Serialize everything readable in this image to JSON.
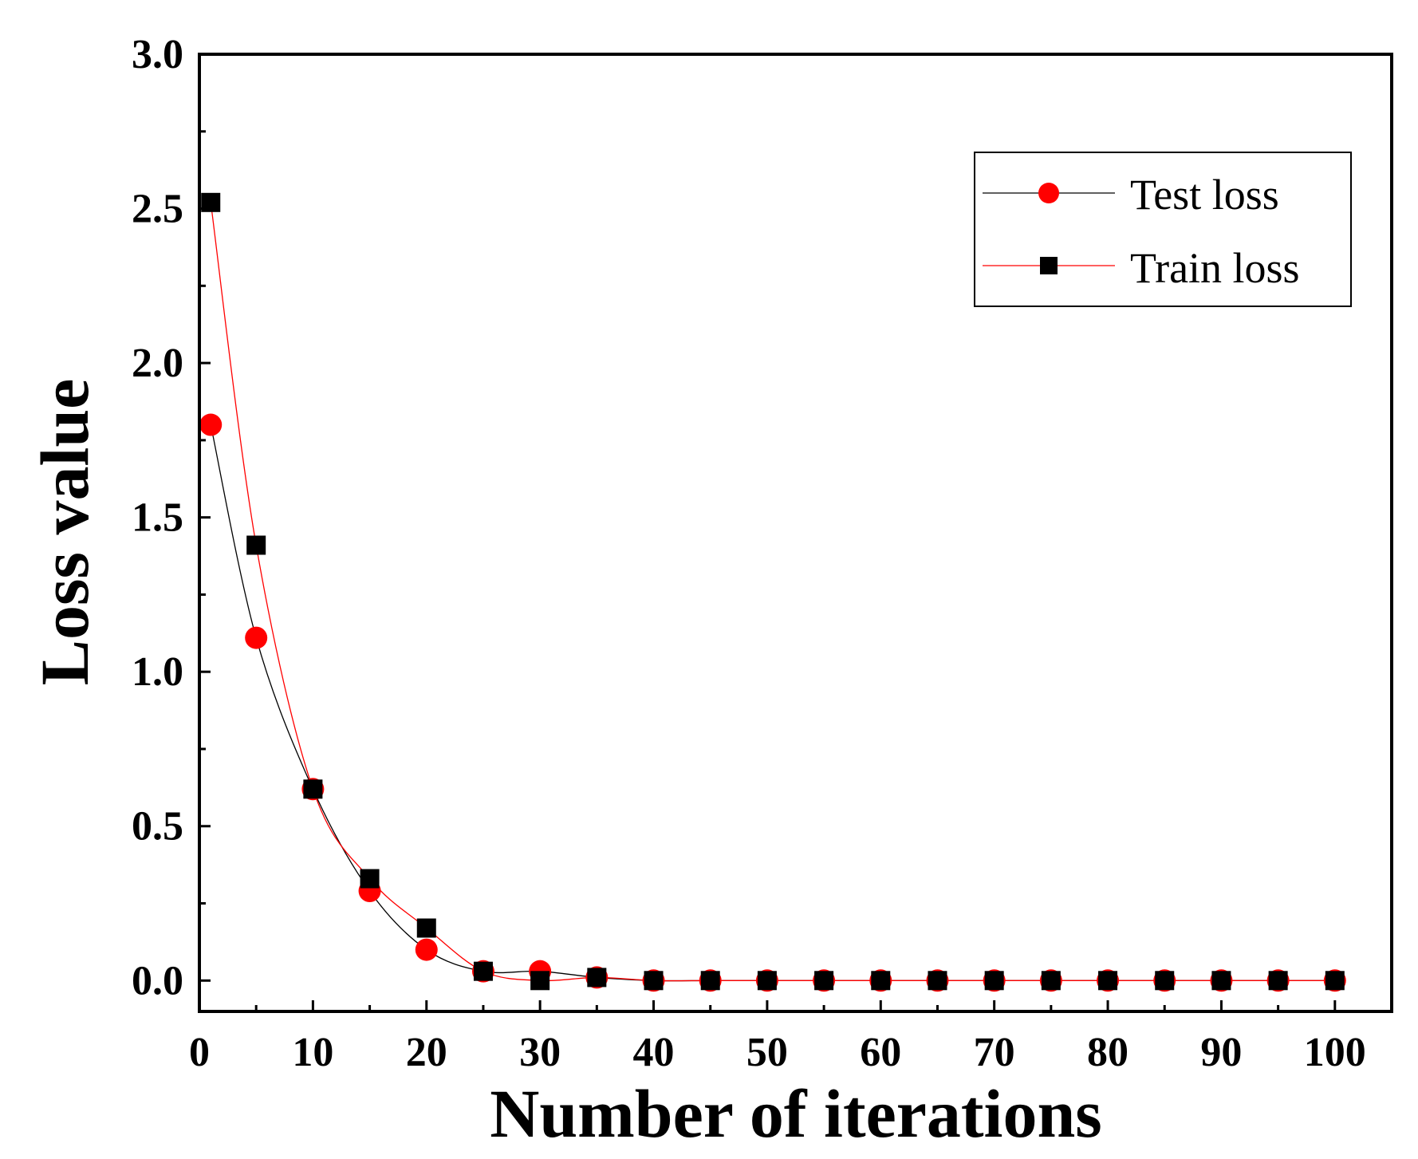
{
  "chart_data": {
    "type": "line",
    "title": "",
    "xlabel": "Number of iterations",
    "ylabel": "Loss value",
    "xlim": [
      0,
      105
    ],
    "ylim": [
      -0.1,
      3.0
    ],
    "xticks": [
      0,
      10,
      20,
      30,
      40,
      50,
      60,
      70,
      80,
      90,
      100
    ],
    "xtick_labels": [
      "0",
      "10",
      "20",
      "30",
      "40",
      "50",
      "60",
      "70",
      "80",
      "90",
      "100"
    ],
    "yticks": [
      0.0,
      0.5,
      1.0,
      1.5,
      2.0,
      2.5,
      3.0
    ],
    "ytick_labels": [
      "0.0",
      "0.5",
      "1.0",
      "1.5",
      "2.0",
      "2.5",
      "3.0"
    ],
    "grid": false,
    "legend_position": "top-right",
    "x": [
      1,
      5,
      10,
      15,
      20,
      25,
      30,
      35,
      40,
      45,
      50,
      55,
      60,
      65,
      70,
      75,
      80,
      85,
      90,
      95,
      100
    ],
    "series": [
      {
        "name": "Test loss",
        "marker": "circle",
        "marker_color": "#ff0000",
        "line_color": "#000000",
        "values": [
          1.8,
          1.11,
          0.62,
          0.29,
          0.1,
          0.03,
          0.03,
          0.01,
          0.0,
          0.0,
          0.0,
          0.0,
          0.0,
          0.0,
          0.0,
          0.0,
          0.0,
          0.0,
          0.0,
          0.0,
          0.0
        ]
      },
      {
        "name": "Train loss",
        "marker": "square",
        "marker_color": "#000000",
        "line_color": "#ff0000",
        "values": [
          2.52,
          1.41,
          0.62,
          0.33,
          0.17,
          0.03,
          0.0,
          0.01,
          0.0,
          0.0,
          0.0,
          0.0,
          0.0,
          0.0,
          0.0,
          0.0,
          0.0,
          0.0,
          0.0,
          0.0,
          0.0
        ]
      }
    ]
  }
}
